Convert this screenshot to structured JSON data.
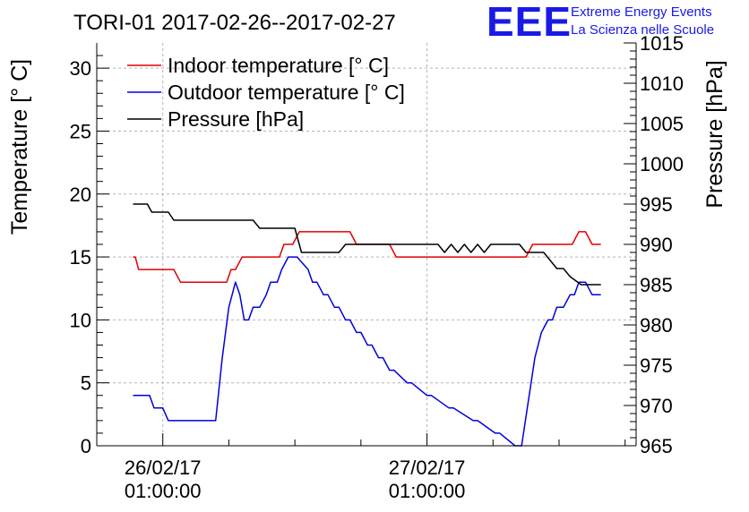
{
  "chart_data": {
    "type": "line",
    "title": "TORI-01 2017-02-26--2017-02-27",
    "ylabel": "Temperature [° C]",
    "y2label": "Pressure [hPa]",
    "ylim": [
      0,
      32
    ],
    "y2lim": [
      965,
      1015
    ],
    "xlim": [
      -6,
      43
    ],
    "x_unit": "hours since 2017-02-26 01:00:00",
    "y_ticks": [
      "0",
      "5",
      "10",
      "15",
      "20",
      "25",
      "30"
    ],
    "y2_ticks": [
      "965",
      "970",
      "975",
      "980",
      "985",
      "990",
      "995",
      "1000",
      "1005",
      "1010",
      "1015"
    ],
    "x_ticks": [
      {
        "line1": "26/02/17",
        "line2": "01:00:00"
      },
      {
        "line1": "27/02/17",
        "line2": "01:00:00"
      }
    ],
    "grid": true,
    "legend_position": "top-left",
    "series": [
      {
        "name": "Indoor temperature [° C]",
        "color": "#e00000",
        "axis": "left",
        "x": [
          -2.7,
          -2.5,
          -2.2,
          1.0,
          1.6,
          5.8,
          6.2,
          6.6,
          7.2,
          10.6,
          11.0,
          11.8,
          12.4,
          13.0,
          17.0,
          17.6,
          20.6,
          21.2,
          33.0,
          33.6,
          37.2,
          37.8,
          38.4,
          39.0,
          39.4,
          39.8
        ],
        "y": [
          15,
          15,
          14,
          14,
          13,
          13,
          14,
          14,
          15,
          15,
          16,
          16,
          17,
          17,
          17,
          16,
          16,
          15,
          15,
          16,
          16,
          17,
          17,
          16,
          16,
          16
        ]
      },
      {
        "name": "Outdoor temperature [° C]",
        "color": "#0000dd",
        "axis": "left",
        "x": [
          -2.7,
          -1.2,
          -0.8,
          0.0,
          0.5,
          4.8,
          5.4,
          6.0,
          6.6,
          7.0,
          7.4,
          7.8,
          8.2,
          8.8,
          9.4,
          9.8,
          10.4,
          10.8,
          11.4,
          11.8,
          12.2,
          13.2,
          13.6,
          14.0,
          14.6,
          15.0,
          15.6,
          16.0,
          16.6,
          17.0,
          17.6,
          18.0,
          18.6,
          19.0,
          19.6,
          20.0,
          20.6,
          21.0,
          22.2,
          22.6,
          24.0,
          24.4,
          26.0,
          26.4,
          28.2,
          28.6,
          30.2,
          30.6,
          32.0,
          32.6,
          33.8,
          34.4,
          35.0,
          35.4,
          35.8,
          36.4,
          37.0,
          37.4,
          37.8,
          38.4,
          39.0,
          39.4,
          39.8
        ],
        "y": [
          4,
          4,
          3,
          3,
          2,
          2,
          7,
          11,
          13,
          12,
          10,
          10,
          11,
          11,
          12,
          13,
          13,
          14,
          15,
          15,
          15,
          14,
          13,
          13,
          12,
          12,
          11,
          11,
          10,
          10,
          9,
          9,
          8,
          8,
          7,
          7,
          6,
          6,
          5,
          5,
          4,
          4,
          3,
          3,
          2,
          2,
          1,
          1,
          0,
          0,
          7,
          9,
          10,
          10,
          11,
          11,
          12,
          12,
          13,
          13,
          12,
          12,
          12
        ]
      },
      {
        "name": "Pressure [hPa]",
        "color": "#000000",
        "axis": "right",
        "x": [
          -2.7,
          -1.4,
          -1.0,
          0.5,
          1.0,
          8.2,
          8.8,
          12.0,
          12.6,
          16.0,
          16.6,
          20.0,
          25.0,
          25.6,
          26.2,
          26.8,
          27.4,
          28.0,
          28.6,
          29.2,
          29.8,
          30.4,
          31.0,
          32.4,
          33.0,
          34.6,
          35.2,
          35.8,
          36.4,
          37.0,
          38.0,
          39.8
        ],
        "y": [
          995,
          995,
          994,
          994,
          993,
          993,
          992,
          992,
          989,
          989,
          990,
          990,
          990,
          989,
          990,
          989,
          990,
          989,
          990,
          989,
          990,
          990,
          990,
          990,
          989,
          989,
          988,
          987,
          987,
          986,
          985,
          985
        ]
      }
    ]
  },
  "logo": {
    "mark": "EEE",
    "line1": "Extreme Energy Events",
    "line2": "La Scienza nelle Scuole"
  }
}
